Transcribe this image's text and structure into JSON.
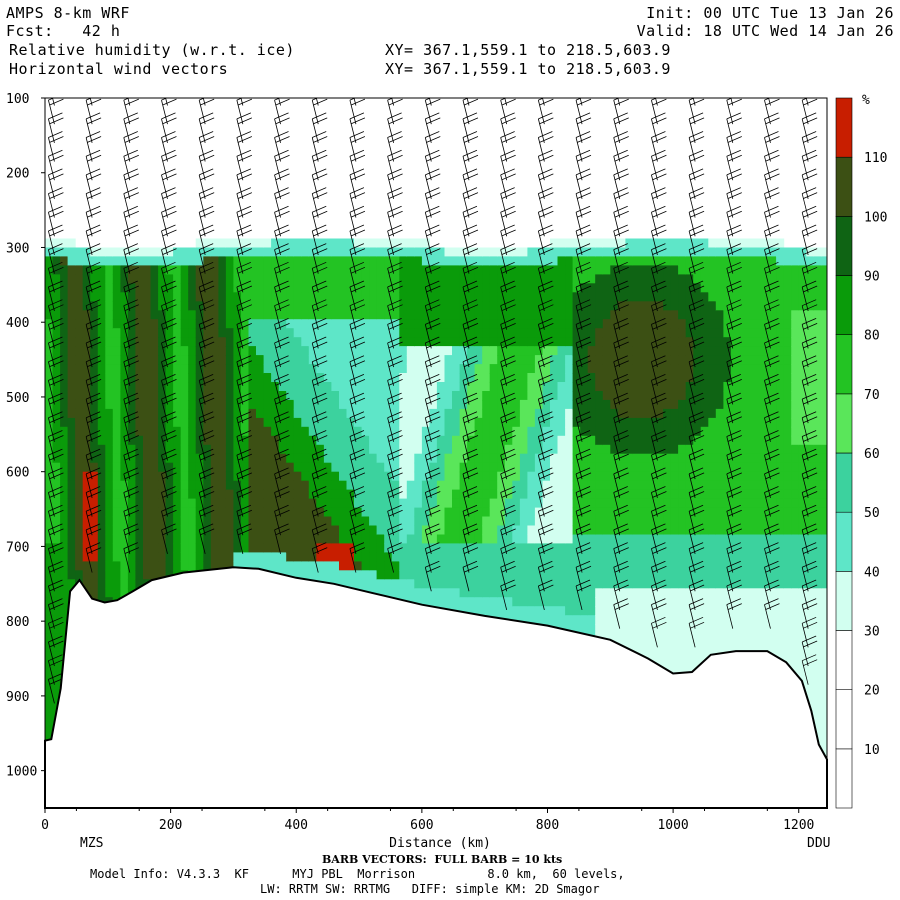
{
  "header": {
    "model": "AMPS 8-km WRF",
    "fcst": "Fcst:   42 h",
    "field1": "Relative humidity (w.r.t. ice)",
    "field2": "Horizontal wind vectors",
    "init": "Init: 00 UTC Tue 13 Jan 26",
    "valid": "Valid: 18 UTC Wed 14 Jan 26",
    "xy1": "XY= 367.1,559.1 to 218.5,603.9",
    "xy2": "XY= 367.1,559.1 to 218.5,603.9"
  },
  "footer": {
    "barb": "BARB VECTORS:  FULL BARB = 10 kts",
    "model_info": "Model Info: V4.3.3  KF      MYJ PBL  Morrison          8.0 km,  60 levels,",
    "physics": "LW: RRTM SW: RRTMG   DIFF: simple KM: 2D Smagor"
  },
  "chart_data": {
    "type": "heatmap",
    "xlabel": "Distance (km)",
    "x_tick_labels": [
      "0",
      "200",
      "400",
      "600",
      "800",
      "1000",
      "1200"
    ],
    "x_ticks": [
      0,
      200,
      400,
      600,
      800,
      1000,
      1200
    ],
    "xlim": [
      0,
      1245
    ],
    "ylim_hPa": [
      1050,
      100
    ],
    "y_ticks": [
      100,
      200,
      300,
      400,
      500,
      600,
      700,
      800,
      900,
      1000
    ],
    "y_tick_labels": [
      "100",
      "200",
      "300",
      "400",
      "500",
      "600",
      "700",
      "800",
      "900",
      "1000"
    ],
    "endpoint_labels": {
      "left": "MZS",
      "right": "DDU"
    },
    "colorbar": {
      "unit": "%",
      "levels": [
        10,
        20,
        30,
        40,
        50,
        60,
        70,
        80,
        90,
        100,
        110
      ],
      "level_labels": [
        "10",
        "20",
        "30",
        "40",
        "50",
        "60",
        "70",
        "80",
        "90",
        "100",
        "110"
      ],
      "colors": [
        "#ffffff",
        "#ffffff",
        "#ffffff",
        "#d2fff0",
        "#5ee6c8",
        "#3cd29e",
        "#5ae65a",
        "#23c323",
        "#0a9b0a",
        "#0f6414",
        "#3c5014",
        "#c81e00"
      ]
    },
    "terrain_hPa": [
      [
        0,
        960
      ],
      [
        10,
        958
      ],
      [
        25,
        890
      ],
      [
        40,
        760
      ],
      [
        55,
        745
      ],
      [
        75,
        770
      ],
      [
        95,
        775
      ],
      [
        115,
        772
      ],
      [
        140,
        760
      ],
      [
        170,
        745
      ],
      [
        220,
        735
      ],
      [
        300,
        728
      ],
      [
        340,
        730
      ],
      [
        400,
        742
      ],
      [
        460,
        750
      ],
      [
        520,
        762
      ],
      [
        600,
        778
      ],
      [
        700,
        793
      ],
      [
        800,
        806
      ],
      [
        900,
        825
      ],
      [
        960,
        850
      ],
      [
        1000,
        870
      ],
      [
        1030,
        868
      ],
      [
        1060,
        845
      ],
      [
        1100,
        840
      ],
      [
        1150,
        840
      ],
      [
        1180,
        855
      ],
      [
        1205,
        880
      ],
      [
        1220,
        920
      ],
      [
        1232,
        965
      ],
      [
        1245,
        985
      ]
    ],
    "moist_layer_top_hPa": 300
  }
}
